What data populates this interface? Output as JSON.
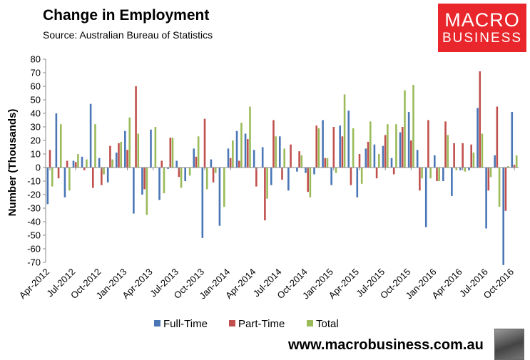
{
  "header": {
    "title": "Change in Employment",
    "subtitle": "Source: Australian Bureau of Statistics"
  },
  "logo": {
    "line1": "MACRO",
    "line2": "BUSINESS"
  },
  "footer": {
    "website": "www.macrobusiness.com.au"
  },
  "colors": {
    "full_time": "#4a76b6",
    "part_time": "#c0504d",
    "total": "#9bbb59",
    "axis": "#888888"
  },
  "chart_data": {
    "type": "bar",
    "title": "Change in Employment",
    "xlabel": "",
    "ylabel": "Number (Thousands)",
    "ylim": [
      -70,
      80
    ],
    "yticks": [
      -70,
      -60,
      -50,
      -40,
      -30,
      -20,
      -10,
      0,
      10,
      20,
      30,
      40,
      50,
      60,
      70,
      80
    ],
    "grid": false,
    "legend_position": "bottom-center",
    "tick_labels": [
      "Apr-2012",
      "Jul-2012",
      "Oct-2012",
      "Jan-2013",
      "Apr-2013",
      "Jul-2013",
      "Oct-2013",
      "Jan-2014",
      "Apr-2014",
      "Jul-2014",
      "Oct-2014",
      "Jan-2015",
      "Apr-2015",
      "Jul-2015",
      "Oct-2015",
      "Jan-2016",
      "Apr-2016",
      "Jul-2016",
      "Oct-2016"
    ],
    "tick_every": 3,
    "categories": [
      "Apr-2012",
      "May-2012",
      "Jun-2012",
      "Jul-2012",
      "Aug-2012",
      "Sep-2012",
      "Oct-2012",
      "Nov-2012",
      "Dec-2012",
      "Jan-2013",
      "Feb-2013",
      "Mar-2013",
      "Apr-2013",
      "May-2013",
      "Jun-2013",
      "Jul-2013",
      "Aug-2013",
      "Sep-2013",
      "Oct-2013",
      "Nov-2013",
      "Dec-2013",
      "Jan-2014",
      "Feb-2014",
      "Mar-2014",
      "Apr-2014",
      "May-2014",
      "Jun-2014",
      "Jul-2014",
      "Aug-2014",
      "Sep-2014",
      "Oct-2014",
      "Nov-2014",
      "Dec-2014",
      "Jan-2015",
      "Feb-2015",
      "Mar-2015",
      "Apr-2015",
      "May-2015",
      "Jun-2015",
      "Jul-2015",
      "Aug-2015",
      "Sep-2015",
      "Oct-2015",
      "Nov-2015",
      "Dec-2015",
      "Jan-2016",
      "Feb-2016",
      "Mar-2016",
      "Apr-2016",
      "May-2016",
      "Jun-2016",
      "Jul-2016",
      "Aug-2016",
      "Sep-2016",
      "Oct-2016"
    ],
    "series": [
      {
        "name": "Full-Time",
        "values": [
          -27,
          40,
          -22,
          5,
          8,
          47,
          7,
          -11,
          11,
          27,
          -34,
          -20,
          28,
          -24,
          -1,
          5,
          -10,
          14,
          -52,
          6,
          -43,
          14,
          27,
          25,
          13,
          15,
          -13,
          23,
          -17,
          -3,
          -4,
          -5,
          35,
          -13,
          31,
          42,
          -22,
          14,
          17,
          16,
          7,
          26,
          41,
          13,
          -44,
          9,
          -10,
          -21,
          -2,
          -2,
          44,
          -45,
          9,
          -72,
          41
        ]
      },
      {
        "name": "Part-Time",
        "values": [
          13,
          -8,
          5,
          4,
          -2,
          -15,
          -13,
          16,
          18,
          13,
          60,
          -16,
          0,
          5,
          22,
          -7,
          0,
          8,
          36,
          -11,
          0,
          7,
          5,
          21,
          -14,
          -39,
          35,
          -9,
          17,
          12,
          -18,
          31,
          7,
          30,
          23,
          -13,
          10,
          19,
          -8,
          24,
          -5,
          30,
          20,
          -17,
          35,
          -10,
          34,
          18,
          18,
          17,
          71,
          -17,
          45,
          -32,
          2
        ]
      },
      {
        "name": "Total",
        "values": [
          -14,
          32,
          -17,
          10,
          6,
          32,
          -5,
          6,
          19,
          37,
          25,
          -35,
          30,
          -19,
          22,
          -15,
          -6,
          23,
          -16,
          -4,
          -29,
          20,
          33,
          45,
          0,
          -23,
          23,
          14,
          0,
          9,
          -22,
          29,
          7,
          -4,
          54,
          29,
          -12,
          34,
          10,
          32,
          32,
          57,
          61,
          -8,
          -8,
          -10,
          24,
          -2,
          -3,
          11,
          25,
          -7,
          -29,
          1,
          9
        ]
      }
    ]
  }
}
